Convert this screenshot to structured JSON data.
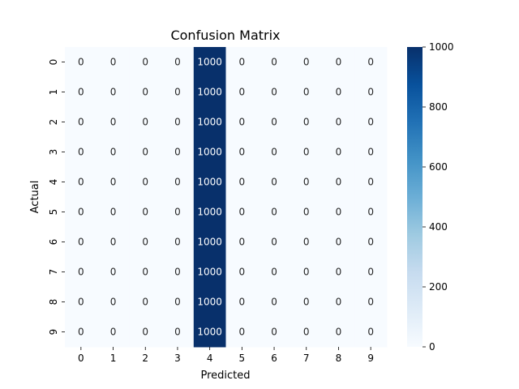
{
  "chart_data": {
    "type": "heatmap",
    "title": "Confusion Matrix",
    "xlabel": "Predicted",
    "ylabel": "Actual",
    "x_categories": [
      "0",
      "1",
      "2",
      "3",
      "4",
      "5",
      "6",
      "7",
      "8",
      "9"
    ],
    "y_categories": [
      "0",
      "1",
      "2",
      "3",
      "4",
      "5",
      "6",
      "7",
      "8",
      "9"
    ],
    "values": [
      [
        0,
        0,
        0,
        0,
        1000,
        0,
        0,
        0,
        0,
        0
      ],
      [
        0,
        0,
        0,
        0,
        1000,
        0,
        0,
        0,
        0,
        0
      ],
      [
        0,
        0,
        0,
        0,
        1000,
        0,
        0,
        0,
        0,
        0
      ],
      [
        0,
        0,
        0,
        0,
        1000,
        0,
        0,
        0,
        0,
        0
      ],
      [
        0,
        0,
        0,
        0,
        1000,
        0,
        0,
        0,
        0,
        0
      ],
      [
        0,
        0,
        0,
        0,
        1000,
        0,
        0,
        0,
        0,
        0
      ],
      [
        0,
        0,
        0,
        0,
        1000,
        0,
        0,
        0,
        0,
        0
      ],
      [
        0,
        0,
        0,
        0,
        1000,
        0,
        0,
        0,
        0,
        0
      ],
      [
        0,
        0,
        0,
        0,
        1000,
        0,
        0,
        0,
        0,
        0
      ],
      [
        0,
        0,
        0,
        0,
        1000,
        0,
        0,
        0,
        0,
        0
      ]
    ],
    "colormap": "Blues",
    "color_min": "#f7fbff",
    "color_max": "#08306b",
    "colorbar": {
      "range": [
        0,
        1000
      ],
      "ticks": [
        0,
        200,
        400,
        600,
        800,
        1000
      ]
    },
    "annotations_shown": true
  }
}
